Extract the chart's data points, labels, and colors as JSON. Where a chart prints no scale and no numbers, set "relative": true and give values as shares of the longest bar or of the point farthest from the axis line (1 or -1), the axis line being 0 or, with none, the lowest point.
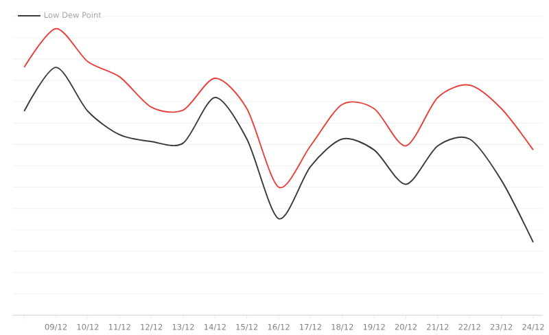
{
  "chart_data": {
    "type": "line",
    "relative": true,
    "grid": "y",
    "legend": "top left",
    "categories": [
      null,
      "09/12",
      "10/12",
      "11/12",
      "12/12",
      "13/12",
      "14/12",
      "15/12",
      "16/12",
      "17/12",
      "18/12",
      "19/12",
      "20/12",
      "21/12",
      "22/12",
      "23/12",
      "24/12"
    ],
    "series": [
      {
        "color": "#e8403a",
        "values": [
          0.865,
          1,
          0.885,
          0.832,
          0.726,
          0.716,
          0.827,
          0.721,
          0.447,
          0.591,
          0.736,
          0.721,
          0.591,
          0.76,
          0.803,
          0.721,
          0.577
        ]
      },
      {
        "name": "Low Dew Point",
        "color": "#3a3a3a",
        "values": [
          0.712,
          0.865,
          0.712,
          0.63,
          0.606,
          0.601,
          0.76,
          0.615,
          0.337,
          0.519,
          0.615,
          0.577,
          0.457,
          0.591,
          0.615,
          0.471,
          0.255
        ]
      }
    ]
  }
}
